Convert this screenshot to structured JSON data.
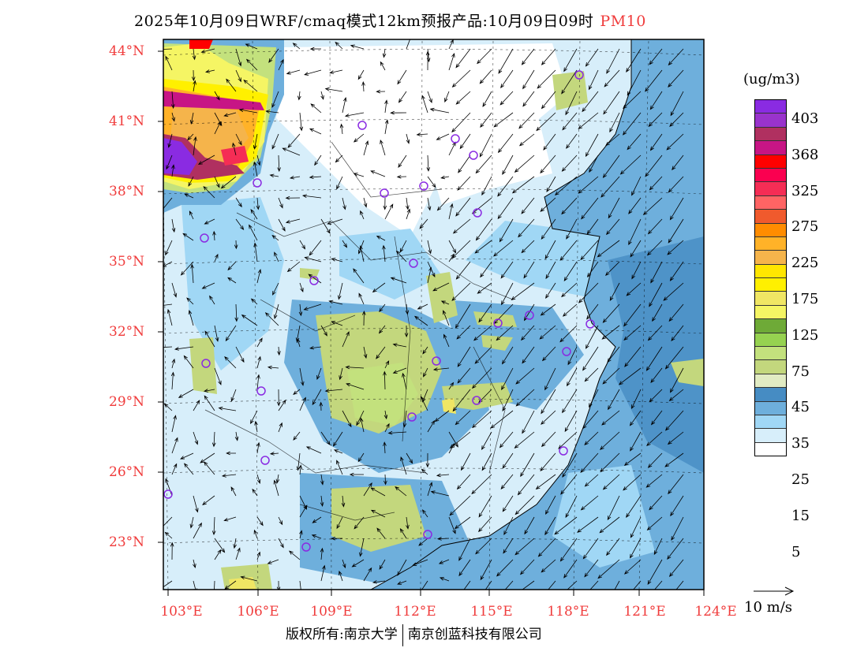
{
  "title": {
    "main": "2025年10月09日WRF/cmaq模式12km预报产品:10月09日09时",
    "species": "PM10"
  },
  "lat_labels": [
    "44°N",
    "41°N",
    "38°N",
    "35°N",
    "32°N",
    "29°N",
    "26°N",
    "23°N"
  ],
  "lon_labels": [
    "103°E",
    "106°E",
    "109°E",
    "112°E",
    "115°E",
    "118°E",
    "121°E",
    "124°E"
  ],
  "legend": {
    "unit": "(ug/m3)",
    "labels": [
      "403",
      "368",
      "325",
      "275",
      "225",
      "175",
      "125",
      "75",
      "45",
      "35",
      "25",
      "15",
      "5"
    ],
    "colors": [
      "#8a2be2",
      "#9933cc",
      "#b03060",
      "#c71585",
      "#ff0000",
      "#fa0050",
      "#f52d55",
      "#ff6464",
      "#f05a2d",
      "#ff8c00",
      "#ffb228",
      "#f5b44b",
      "#ffe600",
      "#fff000",
      "#f0e664",
      "#f5f564",
      "#6eaa37",
      "#96d250",
      "#c3e17d",
      "#c3d77d",
      "#e1ebc3",
      "#468cc3",
      "#6eafdc",
      "#a0d7f5",
      "#d7eefa",
      "#ffffff"
    ]
  },
  "wind_reference": {
    "label": "10 m/s",
    "speed": 10
  },
  "footer": {
    "left": "版权所有:南京大学",
    "right": "南京创蓝科技有限公司"
  }
}
